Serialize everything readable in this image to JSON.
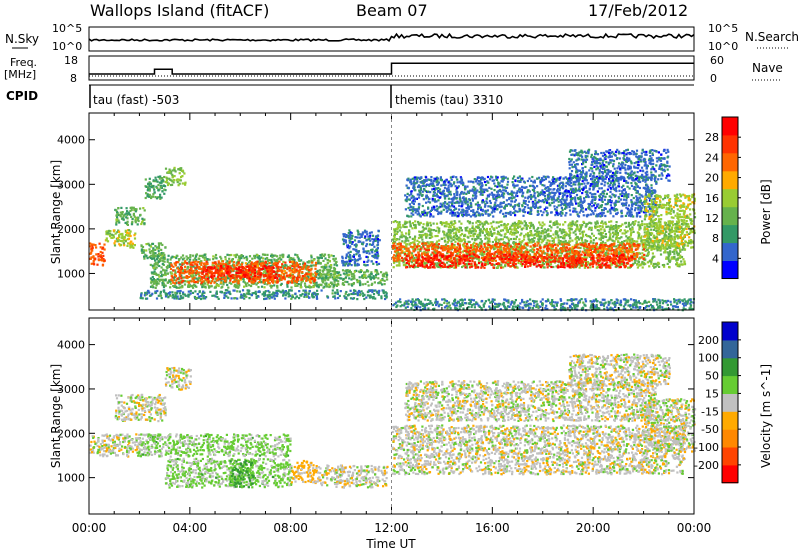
{
  "header": {
    "site": "Wallops Island (fitACF)",
    "beam": "Beam 07",
    "date": "17/Feb/2012"
  },
  "noise_panel": {
    "left_label": "N.Sky",
    "right_label": "N.Search",
    "ticks": [
      "10^5",
      "10^0"
    ],
    "right_ticks": [
      "10^5",
      "10^0"
    ]
  },
  "freq_panel": {
    "left_label": "Freq.",
    "left_unit": "[MHz]",
    "left_ticks": [
      "18",
      "8"
    ],
    "right_label": "Nave",
    "right_ticks": [
      "60",
      "0"
    ],
    "freq_line_mhz": [
      {
        "t": 0.0,
        "v": 10.5
      },
      {
        "t": 2.6,
        "v": 10.5
      },
      {
        "t": 2.6,
        "v": 12.5
      },
      {
        "t": 3.3,
        "v": 12.5
      },
      {
        "t": 3.3,
        "v": 10.5
      },
      {
        "t": 12.0,
        "v": 10.5
      },
      {
        "t": 12.0,
        "v": 15.0
      },
      {
        "t": 24.0,
        "v": 15.0
      }
    ]
  },
  "cpid": {
    "label": "CPID",
    "segments": [
      {
        "start": 0,
        "end": 12,
        "name": "tau (fast) -503"
      },
      {
        "start": 12,
        "end": 24,
        "name": "themis (tau) 3310"
      }
    ]
  },
  "colors": {
    "power": [
      "#0000ff",
      "#3366cc",
      "#339966",
      "#66b24c",
      "#99cc33",
      "#ffaa00",
      "#ff6600",
      "#ff3300",
      "#ff0000"
    ],
    "velocity": [
      "#ff0000",
      "#ff4400",
      "#ff8800",
      "#ffaa00",
      "#c0c0c0",
      "#66cc33",
      "#339933",
      "#336699",
      "#0000cc"
    ]
  },
  "chart_data": [
    {
      "type": "heatmap",
      "name": "power",
      "xlabel": "Time UT",
      "ylabel": "Slant Range [km]",
      "xlim": [
        0,
        24
      ],
      "ylim": [
        180,
        4600
      ],
      "x_ticks": [
        "00:00",
        "04:00",
        "08:00",
        "12:00",
        "16:00",
        "20:00",
        "00:00"
      ],
      "y_ticks": [
        1000,
        2000,
        3000,
        4000
      ],
      "colorbar": {
        "label": "Power [dB]",
        "ticks": [
          "28",
          "24",
          "20",
          "16",
          "12",
          "8",
          "4"
        ],
        "range": [
          0,
          32
        ]
      },
      "regions": [
        {
          "t0": 0.0,
          "t1": 0.6,
          "r0": 1200,
          "r1": 1700,
          "value": 24
        },
        {
          "t0": 0.6,
          "t1": 1.8,
          "r0": 1600,
          "r1": 2000,
          "value": 16
        },
        {
          "t0": 1.0,
          "t1": 2.2,
          "r0": 2100,
          "r1": 2500,
          "value": 12
        },
        {
          "t0": 2.0,
          "t1": 3.0,
          "r0": 1350,
          "r1": 1700,
          "value": 12
        },
        {
          "t0": 2.2,
          "t1": 3.0,
          "r0": 2700,
          "r1": 3200,
          "value": 10
        },
        {
          "t0": 3.0,
          "t1": 3.8,
          "r0": 3000,
          "r1": 3400,
          "value": 14
        },
        {
          "t0": 2.4,
          "t1": 9.8,
          "r0": 700,
          "r1": 1450,
          "value": 12
        },
        {
          "t0": 3.2,
          "t1": 9.0,
          "r0": 800,
          "r1": 1300,
          "value": 24
        },
        {
          "t0": 4.5,
          "t1": 7.5,
          "r0": 900,
          "r1": 1200,
          "value": 28
        },
        {
          "t0": 2.0,
          "t1": 11.8,
          "r0": 450,
          "r1": 650,
          "value": 8
        },
        {
          "t0": 9.0,
          "t1": 11.8,
          "r0": 750,
          "r1": 1100,
          "value": 12
        },
        {
          "t0": 10.0,
          "t1": 11.5,
          "r0": 1200,
          "r1": 2000,
          "value": 6
        },
        {
          "t0": 12.0,
          "t1": 23.6,
          "r0": 1150,
          "r1": 2200,
          "value": 14
        },
        {
          "t0": 12.0,
          "t1": 22.0,
          "r0": 1300,
          "r1": 1700,
          "value": 24
        },
        {
          "t0": 12.5,
          "t1": 21.5,
          "r0": 1150,
          "r1": 1450,
          "value": 28
        },
        {
          "t0": 12.5,
          "t1": 22.5,
          "r0": 2300,
          "r1": 3200,
          "value": 6
        },
        {
          "t0": 19.0,
          "t1": 23.0,
          "r0": 3100,
          "r1": 3800,
          "value": 6
        },
        {
          "t0": 22.0,
          "t1": 24.0,
          "r0": 1600,
          "r1": 2800,
          "value": 16
        },
        {
          "t0": 12.0,
          "t1": 24.0,
          "r0": 200,
          "r1": 450,
          "value": 8
        }
      ]
    },
    {
      "type": "heatmap",
      "name": "velocity",
      "xlabel": "Time UT",
      "ylabel": "Slant Range [km]",
      "xlim": [
        0,
        24
      ],
      "ylim": [
        180,
        4600
      ],
      "x_ticks": [
        "00:00",
        "04:00",
        "08:00",
        "12:00",
        "16:00",
        "20:00",
        "00:00"
      ],
      "y_ticks": [
        1000,
        2000,
        3000,
        4000
      ],
      "colorbar": {
        "label": "Velocity [m s^-1]",
        "ticks": [
          "200",
          "100",
          "50",
          "15",
          "-15",
          "-50",
          "-100",
          "-200"
        ],
        "range": [
          -250,
          250
        ]
      },
      "regions": [
        {
          "t0": 0.0,
          "t1": 2.0,
          "r0": 1500,
          "r1": 2000,
          "value": 0
        },
        {
          "t0": 1.0,
          "t1": 3.0,
          "r0": 2300,
          "r1": 2900,
          "value": 0
        },
        {
          "t0": 3.0,
          "t1": 4.0,
          "r0": 3000,
          "r1": 3500,
          "value": 0
        },
        {
          "t0": 2.0,
          "t1": 8.0,
          "r0": 1500,
          "r1": 2000,
          "value": 40
        },
        {
          "t0": 3.0,
          "t1": 8.0,
          "r0": 800,
          "r1": 1450,
          "value": 40
        },
        {
          "t0": 5.5,
          "t1": 6.5,
          "r0": 800,
          "r1": 1400,
          "value": 90
        },
        {
          "t0": 8.0,
          "t1": 9.0,
          "r0": 900,
          "r1": 1400,
          "value": -40
        },
        {
          "t0": 9.0,
          "t1": 11.8,
          "r0": 800,
          "r1": 1300,
          "value": 0
        },
        {
          "t0": 12.0,
          "t1": 23.6,
          "r0": 1100,
          "r1": 2200,
          "value": 0
        },
        {
          "t0": 12.5,
          "t1": 22.5,
          "r0": 2300,
          "r1": 3200,
          "value": 0
        },
        {
          "t0": 19.0,
          "t1": 23.0,
          "r0": 3100,
          "r1": 3800,
          "value": 0
        },
        {
          "t0": 22.0,
          "t1": 24.0,
          "r0": 1600,
          "r1": 2800,
          "value": 0
        }
      ]
    }
  ]
}
